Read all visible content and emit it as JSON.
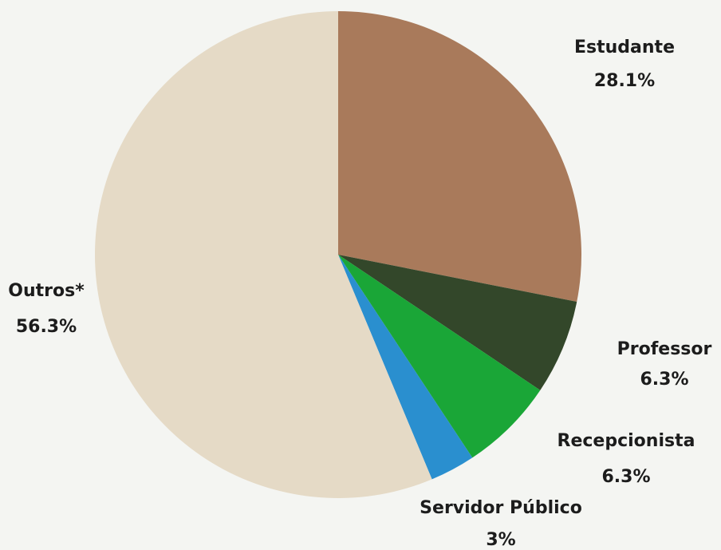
{
  "chart_data": {
    "type": "pie",
    "categories": [
      "Estudante",
      "Professor",
      "Recepcionista",
      "Servidor Público",
      "Outros*"
    ],
    "values": [
      28.1,
      6.3,
      6.3,
      3,
      56.3
    ],
    "value_labels": [
      "28.1%",
      "6.3%",
      "6.3%",
      "3%",
      "56.3%"
    ],
    "colors": [
      "#a97a5b",
      "#33472a",
      "#1aa637",
      "#2a8fcf",
      "#e5dac6"
    ]
  }
}
